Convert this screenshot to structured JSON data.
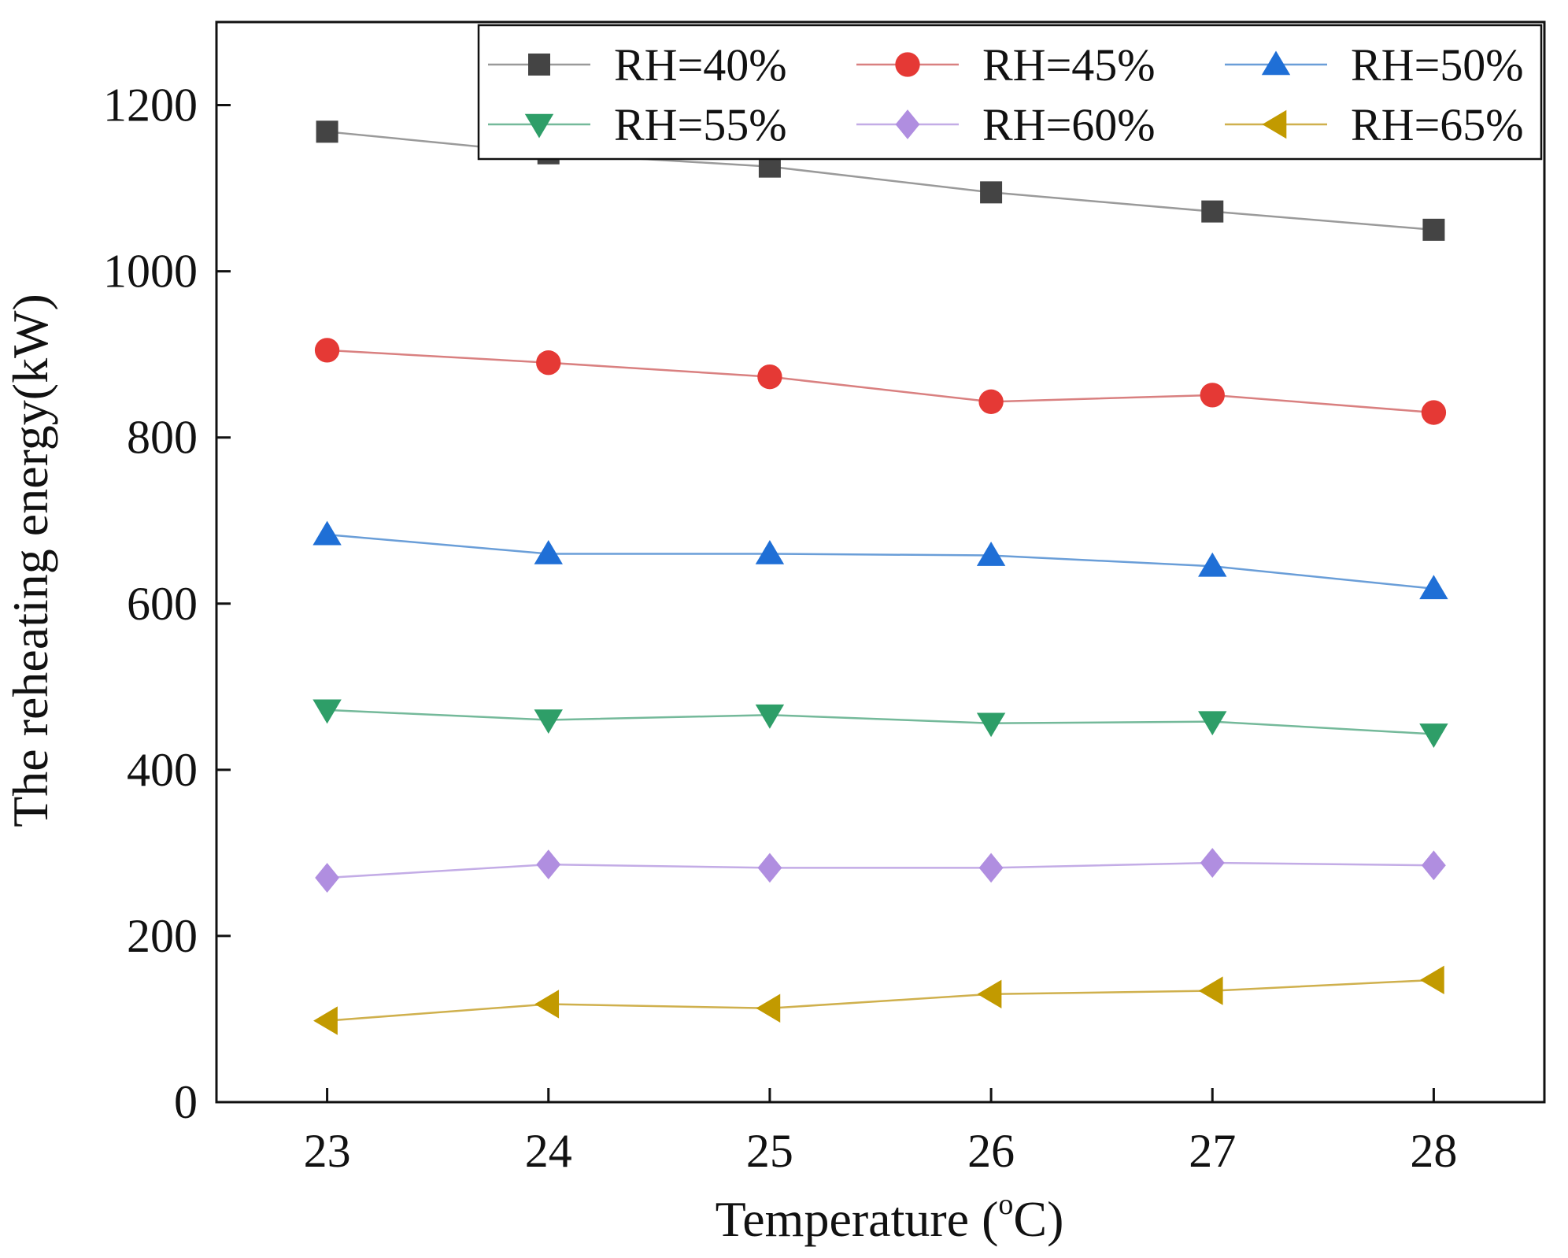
{
  "chart_data": {
    "type": "line",
    "title": "",
    "xlabel": "Temperature (°C)",
    "xlabel_parts": [
      "Temperature (",
      "o",
      "C)"
    ],
    "ylabel": "The reheating energy(kW)",
    "x": [
      23,
      24,
      25,
      26,
      27,
      28
    ],
    "xticks": [
      "23",
      "24",
      "25",
      "26",
      "27",
      "28"
    ],
    "xlim": [
      22.5,
      28.5
    ],
    "ylim": [
      0,
      1300
    ],
    "yticks": [
      "0",
      "200",
      "400",
      "600",
      "800",
      "1000",
      "1200"
    ],
    "ytick_values": [
      0,
      200,
      400,
      600,
      800,
      1000,
      1200
    ],
    "grid": false,
    "legend_position": "top-right",
    "series": [
      {
        "name": "RH=40%",
        "marker": "square",
        "color": "#444444",
        "line_color": "#9a9a9a",
        "values": [
          1168,
          1142,
          1126,
          1095,
          1072,
          1050
        ]
      },
      {
        "name": "RH=45%",
        "marker": "circle",
        "color": "#e53935",
        "line_color": "#d98080",
        "values": [
          905,
          890,
          873,
          843,
          851,
          830
        ]
      },
      {
        "name": "RH=50%",
        "marker": "triangle-up",
        "color": "#1f6fd6",
        "line_color": "#6a9ed8",
        "values": [
          683,
          660,
          660,
          658,
          645,
          618
        ]
      },
      {
        "name": "RH=55%",
        "marker": "triangle-down",
        "color": "#2e9e68",
        "line_color": "#74b99a",
        "values": [
          472,
          460,
          466,
          456,
          458,
          443
        ]
      },
      {
        "name": "RH=60%",
        "marker": "diamond",
        "color": "#b08ee0",
        "line_color": "#c3ace6",
        "values": [
          270,
          286,
          282,
          282,
          288,
          285
        ]
      },
      {
        "name": "RH=65%",
        "marker": "triangle-left",
        "color": "#c29a00",
        "line_color": "#cfb04d",
        "values": [
          98,
          118,
          113,
          130,
          134,
          147
        ]
      }
    ]
  }
}
